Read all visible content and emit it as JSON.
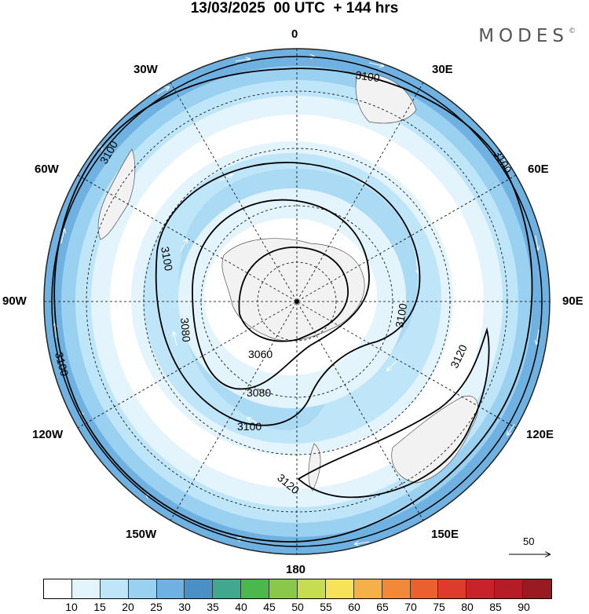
{
  "title": "13/03/2025  00 UTC  + 144 hrs",
  "brand": "MODES",
  "brand_mark": "©",
  "longitude_labels": {
    "north": "0",
    "south": "180",
    "east_30": "30E",
    "east_60": "60E",
    "east_90": "90E",
    "east_120": "120E",
    "east_150": "150E",
    "west_30": "30W",
    "west_60": "60W",
    "west_90": "90W",
    "west_120": "120W",
    "west_150": "150W"
  },
  "contour_labels": {
    "c3060": "3060",
    "c3080_a": "3080",
    "c3080_b": "3080",
    "c3100_a": "3100",
    "c3100_b": "3100",
    "c3100_c": "3100",
    "c3100_d": "3100",
    "c3100_e": "3100",
    "c3100_f": "3100",
    "c3100_g": "3100",
    "c3120_a": "3120",
    "c3120_b": "3120"
  },
  "reference_vector": "50",
  "colorbar": {
    "colors": [
      "#ffffff",
      "#e3f4fc",
      "#bfe6f8",
      "#9ad0f0",
      "#6fb1e0",
      "#4a90c6",
      "#41a88e",
      "#4cb74c",
      "#8ac84a",
      "#c6dc52",
      "#f7e25c",
      "#f5b04a",
      "#f08a3a",
      "#e8612f",
      "#de3b2c",
      "#c8232a",
      "#b41c28",
      "#961c22"
    ],
    "ticks": [
      "10",
      "15",
      "20",
      "25",
      "30",
      "35",
      "40",
      "45",
      "50",
      "55",
      "60",
      "65",
      "70",
      "75",
      "80",
      "85",
      "90"
    ]
  }
}
